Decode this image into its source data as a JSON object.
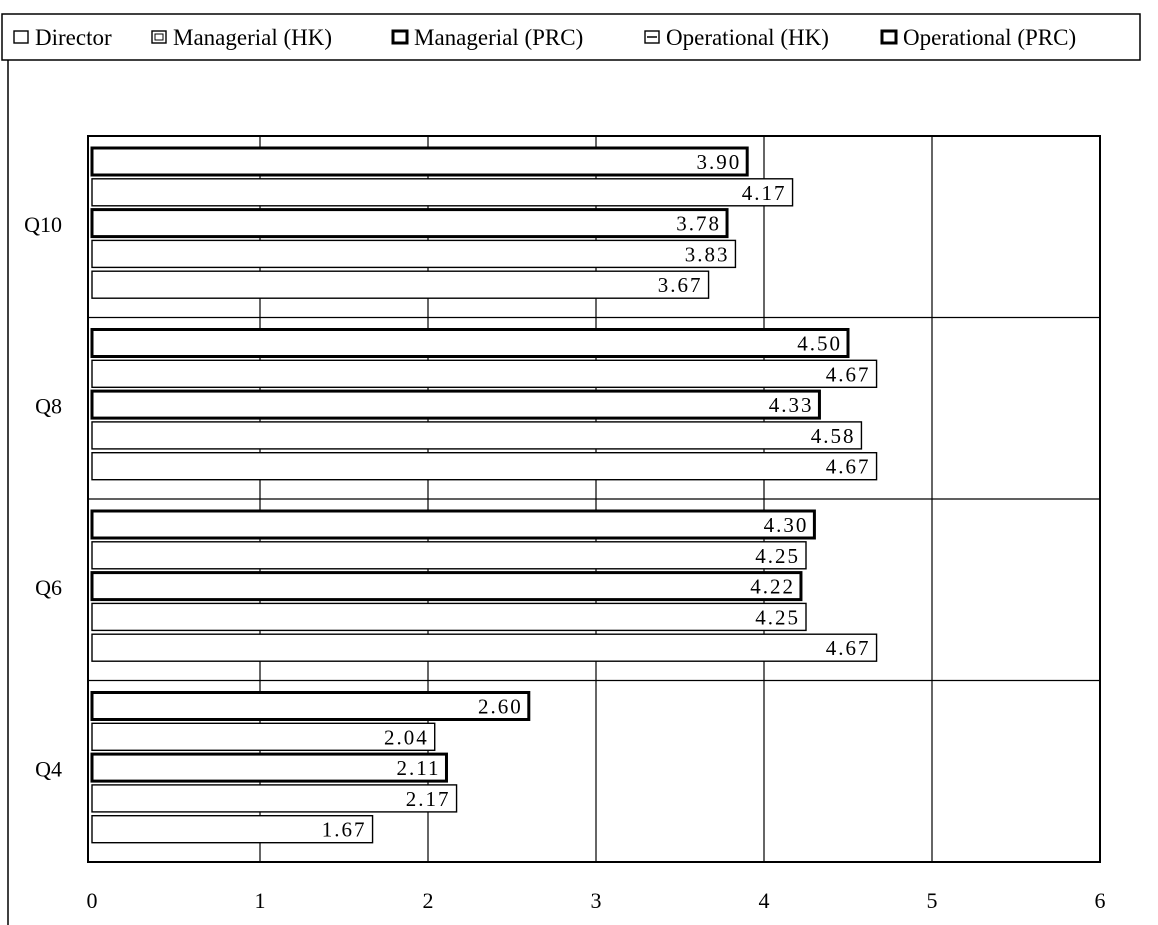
{
  "chart_data": {
    "type": "bar",
    "orientation": "horizontal",
    "title": "",
    "xlabel": "",
    "ylabel": "",
    "xlim": [
      0,
      6
    ],
    "x_ticks": [
      "0",
      "1",
      "2",
      "3",
      "4",
      "5",
      "6"
    ],
    "grid": "vertical",
    "legend_position": "top",
    "categories": [
      "Q10",
      "Q8",
      "Q6",
      "Q4"
    ],
    "series": [
      {
        "name": "Director",
        "values": [
          3.9,
          4.5,
          4.3,
          2.6
        ],
        "labels": [
          "3.90",
          "4.50",
          "4.30",
          "2.60"
        ]
      },
      {
        "name": "Managerial (HK)",
        "values": [
          4.17,
          4.67,
          4.25,
          2.04
        ],
        "labels": [
          "4.17",
          "4.67",
          "4.25",
          "2.04"
        ]
      },
      {
        "name": "Managerial (PRC)",
        "values": [
          3.78,
          4.33,
          4.22,
          2.11
        ],
        "labels": [
          "3.78",
          "4.33",
          "4.22",
          "2.11"
        ]
      },
      {
        "name": "Operational (HK)",
        "values": [
          3.83,
          4.58,
          4.25,
          2.17
        ],
        "labels": [
          "3.83",
          "4.58",
          "4.25",
          "2.17"
        ]
      },
      {
        "name": "Operational (PRC)",
        "values": [
          3.67,
          4.67,
          4.67,
          1.67
        ],
        "labels": [
          "3.67",
          "4.67",
          "4.67",
          "1.67"
        ]
      }
    ],
    "colors": {
      "bar_fill": "#ffffff",
      "stroke": "#000000",
      "background": "#ffffff"
    }
  }
}
